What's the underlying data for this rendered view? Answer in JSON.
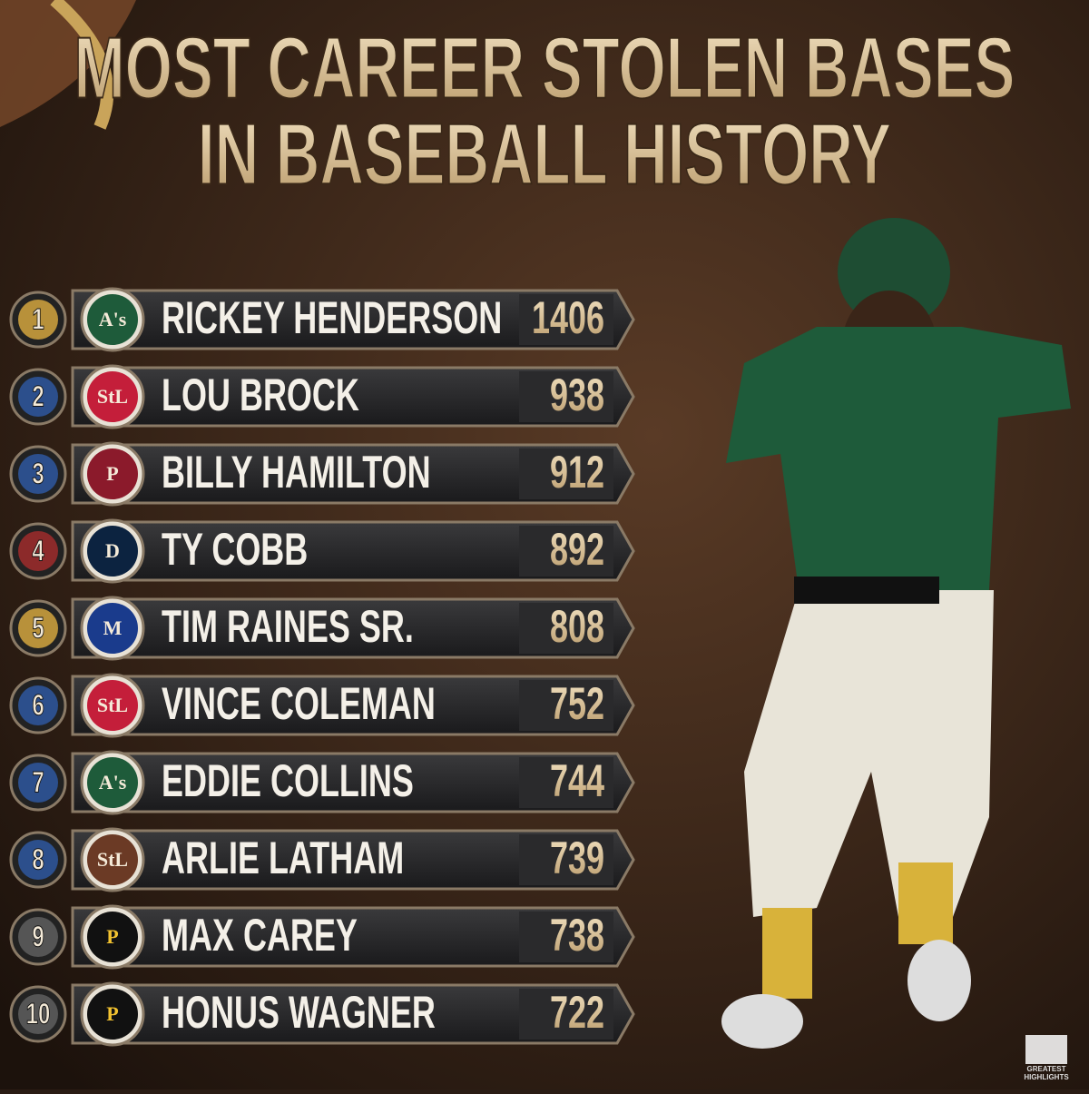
{
  "header": {
    "title_lines": [
      "MOST CAREER STOLEN BASES",
      "IN BASEBALL HISTORY"
    ]
  },
  "rows": [
    {
      "rank": "1",
      "name": "RICKEY HENDERSON",
      "value": "1406",
      "rank_color": "#b8913a",
      "logo_color": "#1e5b3a",
      "logo_text": "A's"
    },
    {
      "rank": "2",
      "name": "LOU BROCK",
      "value": "938",
      "rank_color": "#2c4f8c",
      "logo_color": "#c41e3a",
      "logo_text": "StL"
    },
    {
      "rank": "3",
      "name": "BILLY HAMILTON",
      "value": "912",
      "rank_color": "#2c4f8c",
      "logo_color": "#8b1a2b",
      "logo_text": "P"
    },
    {
      "rank": "4",
      "name": "TY COBB",
      "value": "892",
      "rank_color": "#8c2a2a",
      "logo_color": "#0c2340",
      "logo_text": "D"
    },
    {
      "rank": "5",
      "name": "TIM RAINES SR.",
      "value": "808",
      "rank_color": "#b8913a",
      "logo_color": "#1a3b8c",
      "logo_text": "M"
    },
    {
      "rank": "6",
      "name": "VINCE COLEMAN",
      "value": "752",
      "rank_color": "#2c4f8c",
      "logo_color": "#c41e3a",
      "logo_text": "StL"
    },
    {
      "rank": "7",
      "name": "EDDIE COLLINS",
      "value": "744",
      "rank_color": "#2c4f8c",
      "logo_color": "#1e5b3a",
      "logo_text": "A's"
    },
    {
      "rank": "8",
      "name": "ARLIE LATHAM",
      "value": "739",
      "rank_color": "#2c4f8c",
      "logo_color": "#6b3a25",
      "logo_text": "StL"
    },
    {
      "rank": "9",
      "name": "MAX CAREY",
      "value": "738",
      "rank_color": "#555",
      "logo_color": "#111",
      "logo_text": "P"
    },
    {
      "rank": "10",
      "name": "HONUS WAGNER",
      "value": "722",
      "rank_color": "#555",
      "logo_color": "#111",
      "logo_text": "P"
    }
  ],
  "watermark": [
    "GREATEST",
    "HIGHLIGHTS"
  ]
}
